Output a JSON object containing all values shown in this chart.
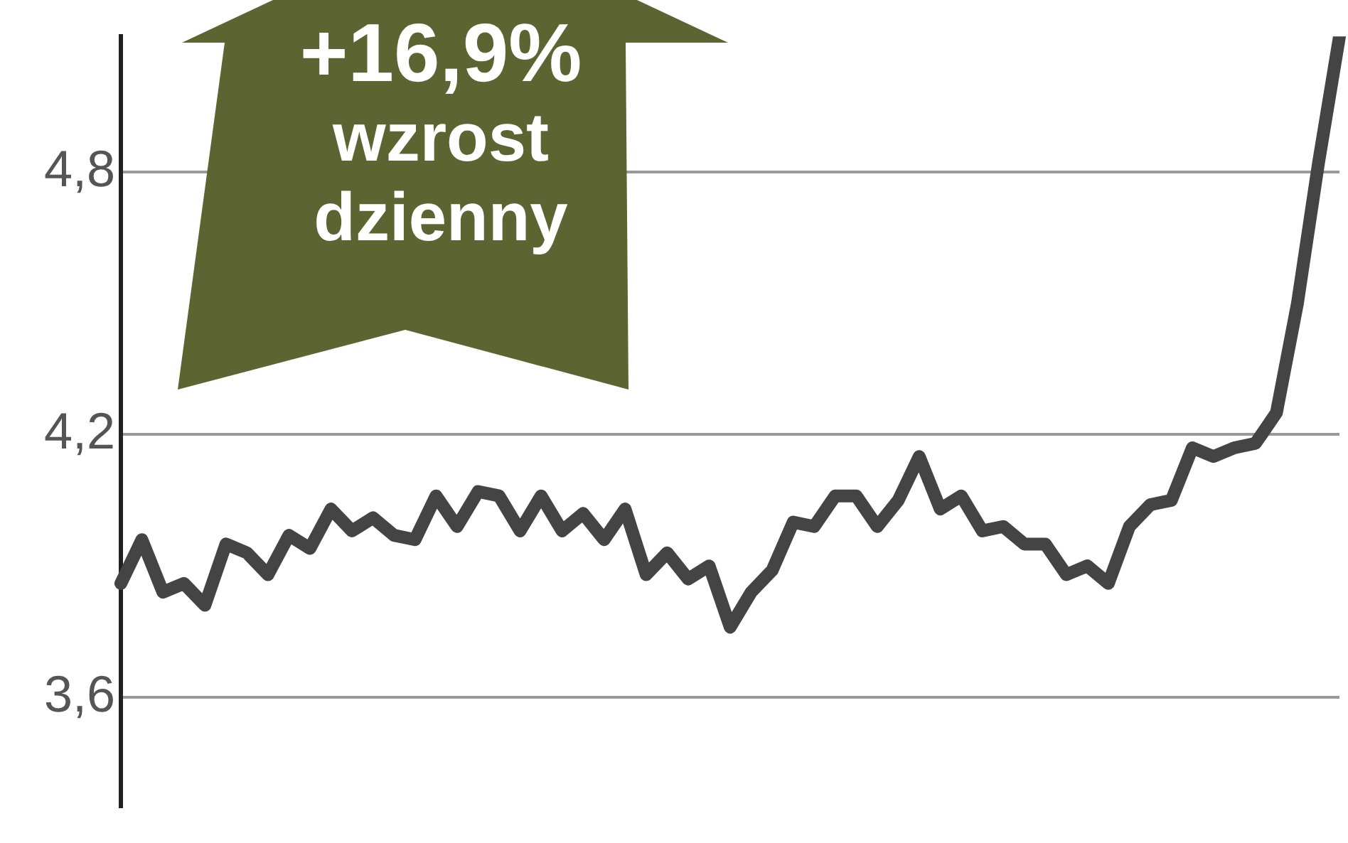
{
  "chart_data": {
    "type": "line",
    "categories": [
      null,
      null,
      null,
      null,
      null,
      null,
      null,
      null,
      null,
      null,
      null,
      null,
      null,
      null,
      null,
      null,
      null,
      null,
      null,
      null,
      null,
      null,
      null,
      null,
      null,
      null,
      null,
      null,
      null,
      null,
      null,
      null,
      null,
      null,
      null,
      null,
      null,
      null,
      null,
      null,
      null,
      null,
      null,
      null,
      null,
      null,
      null,
      null,
      null,
      null,
      null,
      null,
      null,
      null,
      null,
      null,
      null,
      null,
      null
    ],
    "series": [
      {
        "color": "#444444",
        "values": [
          3.86,
          3.96,
          3.84,
          3.86,
          3.81,
          3.95,
          3.93,
          3.88,
          3.97,
          3.94,
          4.03,
          3.98,
          4.01,
          3.97,
          3.96,
          4.06,
          3.99,
          4.07,
          4.06,
          3.98,
          4.06,
          3.98,
          4.02,
          3.96,
          4.03,
          3.88,
          3.93,
          3.87,
          3.9,
          3.76,
          3.84,
          3.89,
          4.0,
          3.99,
          4.06,
          4.06,
          3.99,
          4.05,
          4.15,
          4.03,
          4.06,
          3.98,
          3.99,
          3.95,
          3.95,
          3.88,
          3.9,
          3.86,
          3.99,
          4.04,
          4.05,
          4.17,
          4.15,
          4.17,
          4.18,
          4.25,
          4.5,
          4.82,
          5.11
        ]
      }
    ],
    "ylim": [
      3.35,
      5.11
    ],
    "yticks": [
      {
        "value": 3.6,
        "label": "3,6"
      },
      {
        "value": 4.2,
        "label": "4,2"
      },
      {
        "value": 4.8,
        "label": "4,8"
      }
    ],
    "grid": "y",
    "tick_labels": "y",
    "marker": "none",
    "line_style": "solid",
    "annotations": [
      "+16,9%",
      "wzrost dzienny"
    ]
  }
}
